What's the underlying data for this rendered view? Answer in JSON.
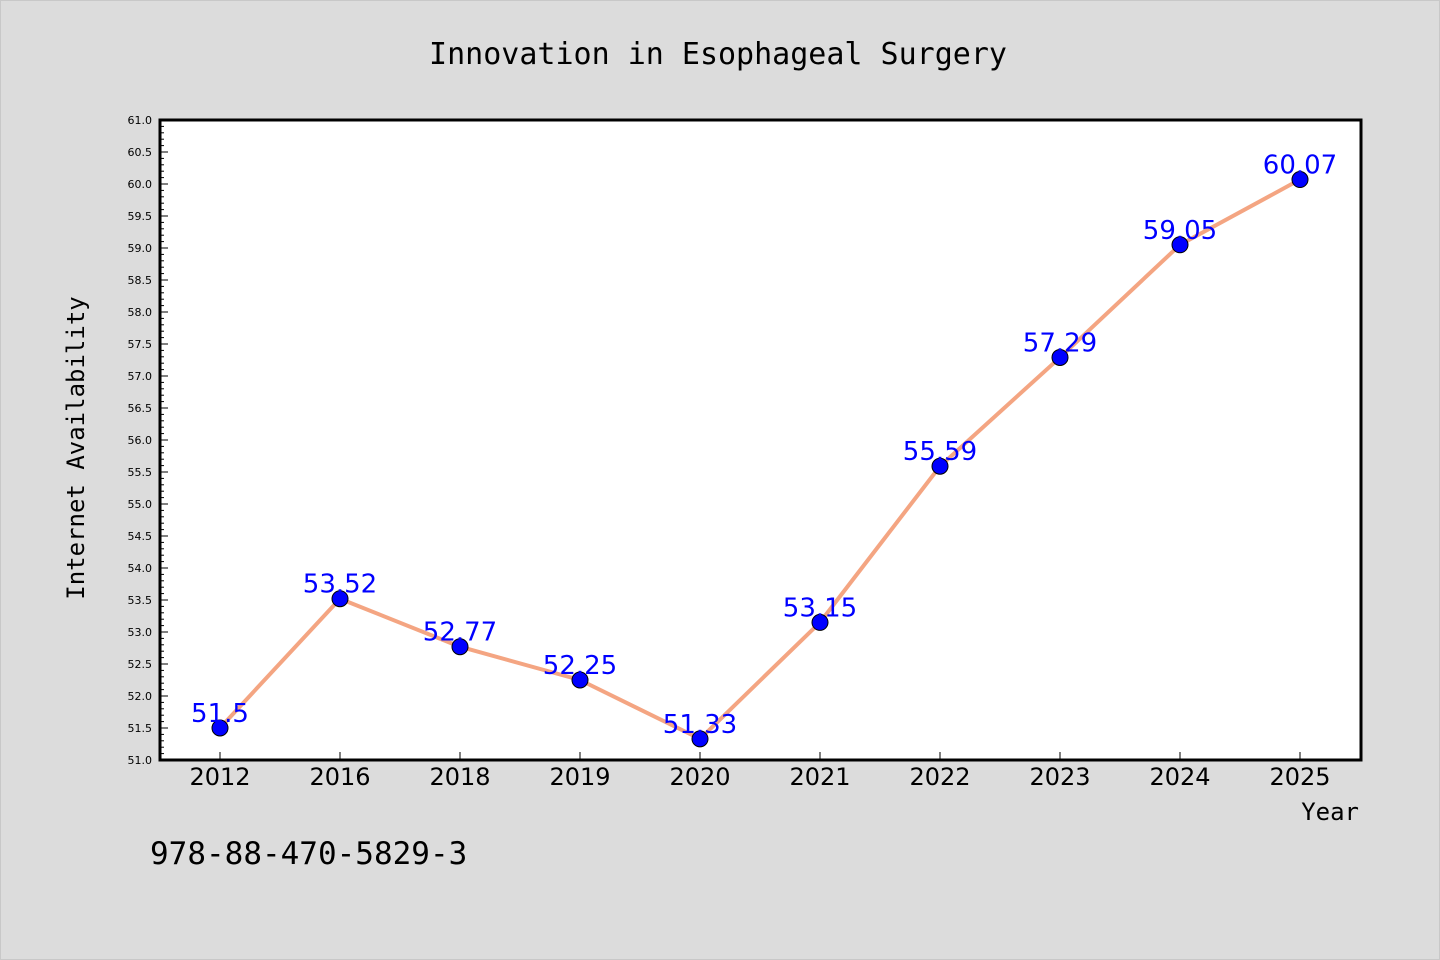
{
  "chart_data": {
    "type": "line",
    "title": "Innovation in Esophageal Surgery",
    "xlabel": "Year",
    "ylabel": "Internet Availability",
    "categories": [
      "2012",
      "2016",
      "2018",
      "2019",
      "2020",
      "2021",
      "2022",
      "2023",
      "2024",
      "2025"
    ],
    "series": [
      {
        "values": [
          51.5,
          53.52,
          52.77,
          52.25,
          51.33,
          53.15,
          55.59,
          57.29,
          59.05,
          60.07
        ]
      }
    ],
    "data_labels": [
      "51.5",
      "53.52",
      "52.77",
      "52.25",
      "51.33",
      "53.15",
      "55.59",
      "57.29",
      "59.05",
      "60.07"
    ],
    "ylim": [
      51.0,
      61.0
    ],
    "y_ticks": [
      "51.0",
      "51.5",
      "52.0",
      "52.5",
      "53.0",
      "53.5",
      "54.0",
      "54.5",
      "55.0",
      "55.5",
      "56.0",
      "56.5",
      "57.0",
      "57.5",
      "58.0",
      "58.5",
      "59.0",
      "59.5",
      "60.0",
      "60.5",
      "61.0"
    ],
    "grid": false,
    "line_color": "#f4a582",
    "marker_color": "#0000ff",
    "label_color": "#0000ff",
    "background_color": "#dcdcdc",
    "plot_background": "#ffffff"
  },
  "annotation": {
    "isbn": "978-88-470-5829-3"
  }
}
